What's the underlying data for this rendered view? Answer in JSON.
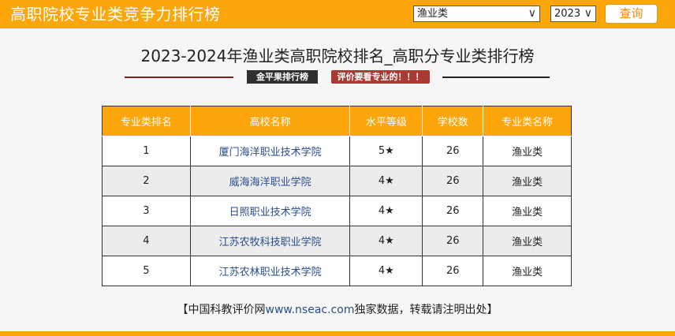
{
  "header": {
    "title": "高职院校专业类竞争力排行榜",
    "major_select": {
      "value": "渔业类",
      "arrow": "∨"
    },
    "year_select": {
      "value": "2023",
      "arrow": "∨"
    },
    "query_label": "查询",
    "accent_color": "#fca60b"
  },
  "main": {
    "title": "2023-2024年渔业类高职院校排名_高职分专业类排行榜",
    "badge_dark": "金平果排行榜",
    "badge_red": "评价要看专业的！！！"
  },
  "table": {
    "columns": [
      "专业类排名",
      "高校名称",
      "水平等级",
      "学校数",
      "专业类名称"
    ],
    "rows": [
      {
        "rank": "1",
        "school": "厦门海洋职业技术学院",
        "level": "5★",
        "count": "26",
        "major": "渔业类"
      },
      {
        "rank": "2",
        "school": "威海海洋职业学院",
        "level": "4★",
        "count": "26",
        "major": "渔业类"
      },
      {
        "rank": "3",
        "school": "日照职业技术学院",
        "level": "4★",
        "count": "26",
        "major": "渔业类"
      },
      {
        "rank": "4",
        "school": "江苏农牧科技职业学院",
        "level": "4★",
        "count": "26",
        "major": "渔业类"
      },
      {
        "rank": "5",
        "school": "江苏农林职业技术学院",
        "level": "4★",
        "count": "26",
        "major": "渔业类"
      }
    ]
  },
  "footer": {
    "prefix": "【中国科教评价网",
    "link": "www.nseac.com",
    "suffix": "独家数据，转载请注明出处】"
  }
}
